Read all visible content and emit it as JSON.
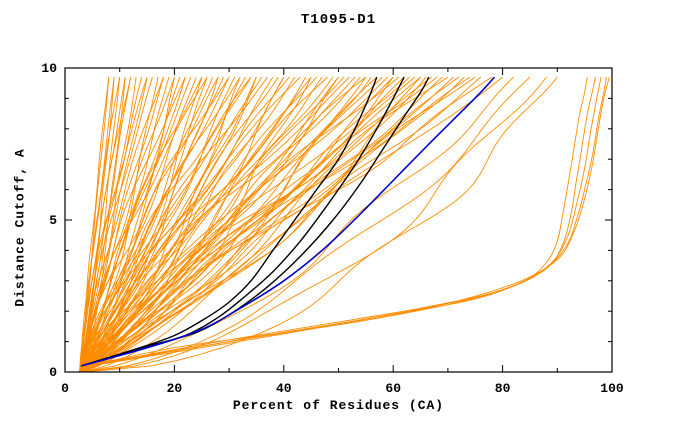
{
  "chart_data": {
    "type": "line",
    "title": "T1095-D1",
    "xlabel": "Percent of Residues (CA)",
    "ylabel": "Distance Cutoff, A",
    "xlim": [
      0,
      100
    ],
    "ylim": [
      0,
      10
    ],
    "xticks": [
      0,
      20,
      40,
      60,
      80,
      100
    ],
    "yticks": [
      0,
      5,
      10
    ],
    "x_minor_step": 10,
    "y_minor_step": 1,
    "grid": false,
    "legend": "none",
    "colors": {
      "model_orange": "#ff8c00",
      "reference_black": "#000000",
      "highlight_blue": "#0000cd",
      "frame": "#000000",
      "background": "#ffffff"
    },
    "description": "Cumulative CA distance-cutoff curves for many predicted models of target T1095-D1; each curve shows percent of residues (x) under a distance cutoff in Angstroms (y).",
    "orange_fan": {
      "start_x": 3,
      "top_y": 9.7,
      "curves": [
        [
          8,
          0.9
        ],
        [
          9,
          1.1
        ],
        [
          10,
          0.8
        ],
        [
          11,
          1.2
        ],
        [
          12,
          1.0
        ],
        [
          13,
          0.85
        ],
        [
          14,
          1.15
        ],
        [
          15,
          0.95
        ],
        [
          16,
          1.25
        ],
        [
          17,
          0.8
        ],
        [
          18,
          1.05
        ],
        [
          19,
          0.9
        ],
        [
          20,
          1.2
        ],
        [
          21,
          1.0
        ],
        [
          22,
          0.85
        ],
        [
          23,
          1.1
        ],
        [
          24,
          0.95
        ],
        [
          25,
          1.3
        ],
        [
          26,
          0.8
        ],
        [
          27,
          1.0
        ],
        [
          28,
          1.15
        ],
        [
          29,
          0.9
        ],
        [
          30,
          1.05
        ],
        [
          31,
          0.85
        ],
        [
          32,
          1.2
        ],
        [
          33,
          0.95
        ],
        [
          34,
          1.1
        ],
        [
          35,
          0.8
        ],
        [
          36,
          1.0
        ],
        [
          37,
          1.25
        ],
        [
          38,
          0.9
        ],
        [
          39,
          1.05
        ],
        [
          40,
          0.85
        ],
        [
          41,
          1.15
        ],
        [
          42,
          0.95
        ],
        [
          43,
          1.3
        ],
        [
          44,
          0.8
        ],
        [
          45,
          1.0
        ],
        [
          46,
          1.1
        ],
        [
          47,
          0.9
        ],
        [
          48,
          1.2
        ],
        [
          49,
          0.95
        ],
        [
          50,
          0.85
        ],
        [
          51,
          1.05
        ],
        [
          52,
          1.15
        ],
        [
          53,
          0.9
        ],
        [
          54,
          1.0
        ],
        [
          55,
          1.25
        ],
        [
          56,
          0.8
        ],
        [
          57,
          1.1
        ],
        [
          58,
          0.95
        ],
        [
          59,
          1.05
        ],
        [
          60,
          0.85
        ],
        [
          61,
          1.2
        ],
        [
          62,
          0.9
        ],
        [
          63,
          1.0
        ],
        [
          64,
          1.15
        ],
        [
          65,
          0.95
        ],
        [
          66,
          0.8
        ],
        [
          67,
          1.05
        ],
        [
          68,
          1.1
        ],
        [
          69,
          0.9
        ],
        [
          70,
          1.2
        ],
        [
          71,
          0.95
        ],
        [
          72,
          1.0
        ],
        [
          73,
          0.85
        ],
        [
          74,
          1.1
        ],
        [
          75,
          1.05
        ],
        [
          76,
          0.9
        ],
        [
          78,
          1.0
        ],
        [
          80,
          0.95
        ],
        [
          15,
          1.4
        ],
        [
          18,
          1.35
        ],
        [
          22,
          1.4
        ],
        [
          26,
          1.35
        ],
        [
          30,
          1.4
        ],
        [
          34,
          1.3
        ],
        [
          12,
          1.3
        ],
        [
          20,
          0.7
        ],
        [
          25,
          0.72
        ],
        [
          35,
          0.7
        ],
        [
          40,
          0.72
        ],
        [
          45,
          0.7
        ],
        [
          50,
          0.75
        ],
        [
          55,
          0.7
        ],
        [
          60,
          0.75
        ],
        [
          65,
          0.7
        ],
        [
          28,
          0.75
        ],
        [
          32,
          0.7
        ],
        [
          8,
          1.3
        ],
        [
          9,
          0.75
        ],
        [
          10,
          1.35
        ],
        [
          11,
          0.7
        ],
        [
          85,
          0.6
        ],
        [
          88,
          0.55
        ],
        [
          82,
          0.65
        ],
        [
          90,
          0.5
        ]
      ]
    },
    "orange_right_cluster": [
      [
        [
          3,
          0.15
        ],
        [
          20,
          0.8
        ],
        [
          40,
          1.3
        ],
        [
          60,
          1.9
        ],
        [
          75,
          2.4
        ],
        [
          84,
          3.0
        ],
        [
          88,
          3.6
        ],
        [
          90,
          4.3
        ],
        [
          91,
          5.2
        ],
        [
          92,
          6.2
        ],
        [
          93,
          7.3
        ],
        [
          94,
          8.4
        ],
        [
          95,
          9.2
        ],
        [
          95.5,
          9.7
        ]
      ],
      [
        [
          3,
          0.15
        ],
        [
          25,
          0.9
        ],
        [
          45,
          1.5
        ],
        [
          65,
          2.1
        ],
        [
          80,
          2.7
        ],
        [
          88,
          3.4
        ],
        [
          91,
          4.2
        ],
        [
          92.5,
          5.2
        ],
        [
          93.5,
          6.3
        ],
        [
          94.5,
          7.4
        ],
        [
          95.5,
          8.5
        ],
        [
          96.5,
          9.3
        ],
        [
          97,
          9.7
        ]
      ],
      [
        [
          3,
          0.15
        ],
        [
          30,
          1.0
        ],
        [
          55,
          1.7
        ],
        [
          72,
          2.3
        ],
        [
          83,
          2.9
        ],
        [
          89,
          3.6
        ],
        [
          92,
          4.5
        ],
        [
          93.5,
          5.5
        ],
        [
          95,
          6.7
        ],
        [
          96,
          7.8
        ],
        [
          97,
          8.8
        ],
        [
          98,
          9.7
        ]
      ],
      [
        [
          3,
          0.15
        ],
        [
          35,
          1.1
        ],
        [
          60,
          1.9
        ],
        [
          78,
          2.6
        ],
        [
          87,
          3.3
        ],
        [
          91.5,
          4.1
        ],
        [
          93.5,
          5.0
        ],
        [
          95,
          6.0
        ],
        [
          96.5,
          7.2
        ],
        [
          97.5,
          8.3
        ],
        [
          98.5,
          9.2
        ],
        [
          99,
          9.7
        ]
      ],
      [
        [
          3,
          0.2
        ],
        [
          40,
          1.3
        ],
        [
          66,
          2.1
        ],
        [
          82,
          2.9
        ],
        [
          90,
          3.7
        ],
        [
          93,
          4.6
        ],
        [
          95,
          5.7
        ],
        [
          96.5,
          6.9
        ],
        [
          97.5,
          8.0
        ],
        [
          98.5,
          9.0
        ],
        [
          99.5,
          9.7
        ]
      ]
    ],
    "black_curves": [
      [
        [
          3,
          0.2
        ],
        [
          12,
          0.7
        ],
        [
          20,
          1.2
        ],
        [
          26,
          1.8
        ],
        [
          30,
          2.3
        ],
        [
          34,
          3.0
        ],
        [
          38,
          4.0
        ],
        [
          42,
          5.0
        ],
        [
          46,
          6.0
        ],
        [
          50,
          7.0
        ],
        [
          53,
          8.0
        ],
        [
          55.5,
          9.0
        ],
        [
          57,
          9.7
        ]
      ],
      [
        [
          3,
          0.2
        ],
        [
          13,
          0.7
        ],
        [
          22,
          1.2
        ],
        [
          28,
          1.8
        ],
        [
          33,
          2.5
        ],
        [
          38,
          3.3
        ],
        [
          43,
          4.3
        ],
        [
          48,
          5.5
        ],
        [
          53,
          6.8
        ],
        [
          57,
          8.0
        ],
        [
          60,
          9.0
        ],
        [
          62,
          9.7
        ]
      ],
      [
        [
          3,
          0.2
        ],
        [
          14,
          0.8
        ],
        [
          24,
          1.3
        ],
        [
          31,
          2.0
        ],
        [
          37,
          2.8
        ],
        [
          43,
          3.8
        ],
        [
          49,
          5.0
        ],
        [
          54,
          6.2
        ],
        [
          58,
          7.3
        ],
        [
          62,
          8.4
        ],
        [
          65,
          9.2
        ],
        [
          66.5,
          9.7
        ]
      ]
    ],
    "blue_curves": [
      [
        [
          3,
          0.2
        ],
        [
          15,
          0.8
        ],
        [
          25,
          1.4
        ],
        [
          33,
          2.2
        ],
        [
          40,
          3.0
        ],
        [
          47,
          4.0
        ],
        [
          54,
          5.2
        ],
        [
          60,
          6.3
        ],
        [
          66,
          7.4
        ],
        [
          71,
          8.3
        ],
        [
          76,
          9.2
        ],
        [
          78.5,
          9.7
        ]
      ]
    ]
  }
}
